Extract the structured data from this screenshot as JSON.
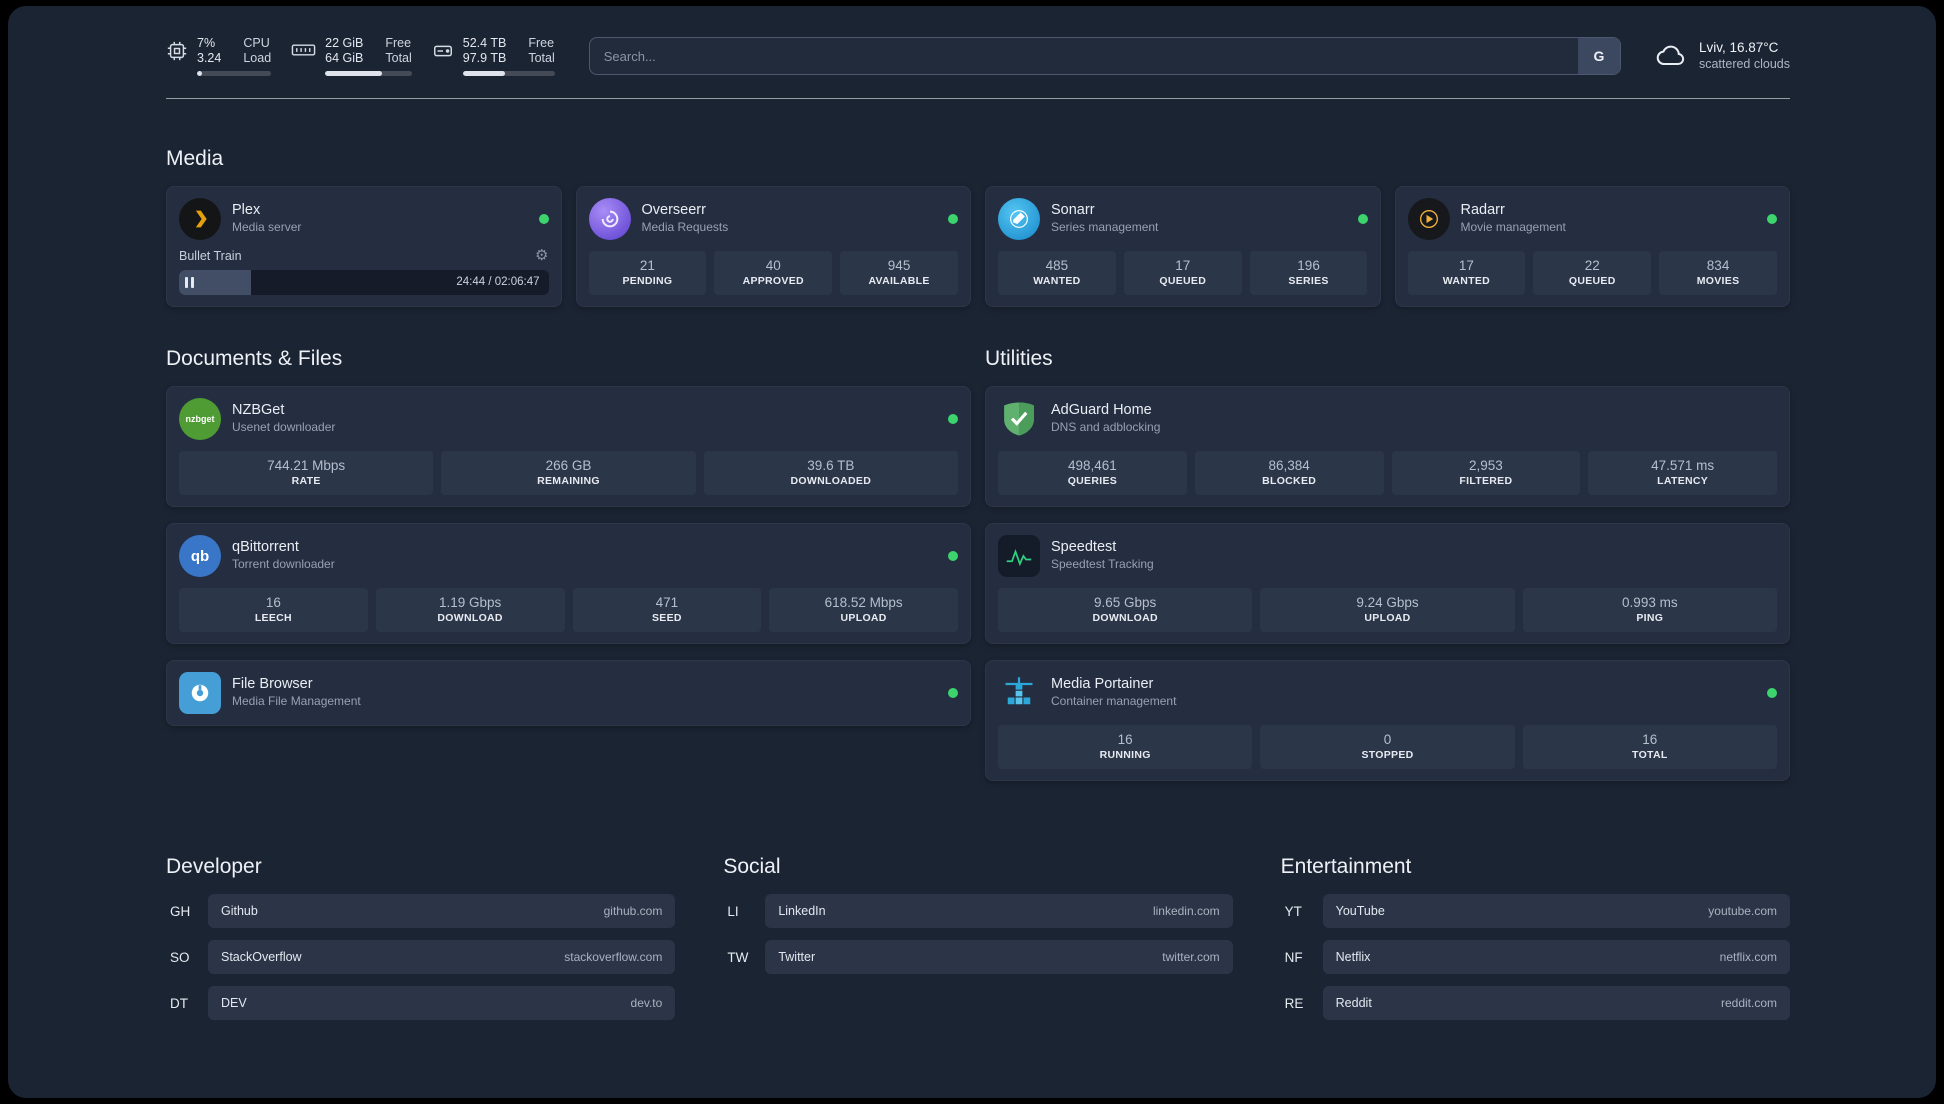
{
  "colors": {
    "background": "#1b2433",
    "card": "#242e40",
    "stat_tile": "#2c3649",
    "status_online": "#3dd36d",
    "plex_accent": "#e5a00d"
  },
  "topbar": {
    "cpu": {
      "value_top": "7%",
      "value_bottom": "3.24",
      "label_top": "CPU",
      "label_bottom": "Load",
      "percent": 7
    },
    "ram": {
      "value_top": "22 GiB",
      "value_bottom": "64 GiB",
      "label_top": "Free",
      "label_bottom": "Total",
      "percent": 66
    },
    "disk": {
      "value_top": "52.4 TB",
      "value_bottom": "97.9 TB",
      "label_top": "Free",
      "label_bottom": "Total",
      "percent": 46
    },
    "search_placeholder": "Search...",
    "search_button": "G",
    "weather": {
      "location": "Lviv, 16.87°C",
      "condition": "scattered clouds"
    }
  },
  "media": {
    "title": "Media",
    "plex": {
      "name": "Plex",
      "desc": "Media server",
      "now_playing": "Bullet Train",
      "time": "24:44 / 02:06:47",
      "progress_percent": 19.5
    },
    "overseerr": {
      "name": "Overseerr",
      "desc": "Media Requests",
      "stats": [
        {
          "value": "21",
          "label": "PENDING"
        },
        {
          "value": "40",
          "label": "APPROVED"
        },
        {
          "value": "945",
          "label": "AVAILABLE"
        }
      ]
    },
    "sonarr": {
      "name": "Sonarr",
      "desc": "Series management",
      "stats": [
        {
          "value": "485",
          "label": "WANTED"
        },
        {
          "value": "17",
          "label": "QUEUED"
        },
        {
          "value": "196",
          "label": "SERIES"
        }
      ]
    },
    "radarr": {
      "name": "Radarr",
      "desc": "Movie management",
      "stats": [
        {
          "value": "17",
          "label": "WANTED"
        },
        {
          "value": "22",
          "label": "QUEUED"
        },
        {
          "value": "834",
          "label": "MOVIES"
        }
      ]
    }
  },
  "documents": {
    "title": "Documents & Files",
    "nzbget": {
      "name": "NZBGet",
      "desc": "Usenet downloader",
      "stats": [
        {
          "value": "744.21 Mbps",
          "label": "RATE"
        },
        {
          "value": "266 GB",
          "label": "REMAINING"
        },
        {
          "value": "39.6 TB",
          "label": "DOWNLOADED"
        }
      ]
    },
    "qbittorrent": {
      "name": "qBittorrent",
      "desc": "Torrent downloader",
      "stats": [
        {
          "value": "16",
          "label": "LEECH"
        },
        {
          "value": "1.19 Gbps",
          "label": "DOWNLOAD"
        },
        {
          "value": "471",
          "label": "SEED"
        },
        {
          "value": "618.52 Mbps",
          "label": "UPLOAD"
        }
      ]
    },
    "filebrowser": {
      "name": "File Browser",
      "desc": "Media File Management"
    }
  },
  "utilities": {
    "title": "Utilities",
    "adguard": {
      "name": "AdGuard Home",
      "desc": "DNS and adblocking",
      "stats": [
        {
          "value": "498,461",
          "label": "QUERIES"
        },
        {
          "value": "86,384",
          "label": "BLOCKED"
        },
        {
          "value": "2,953",
          "label": "FILTERED"
        },
        {
          "value": "47.571 ms",
          "label": "LATENCY"
        }
      ]
    },
    "speedtest": {
      "name": "Speedtest",
      "desc": "Speedtest Tracking",
      "stats": [
        {
          "value": "9.65 Gbps",
          "label": "DOWNLOAD"
        },
        {
          "value": "9.24 Gbps",
          "label": "UPLOAD"
        },
        {
          "value": "0.993 ms",
          "label": "PING"
        }
      ]
    },
    "portainer": {
      "name": "Media Portainer",
      "desc": "Container management",
      "stats": [
        {
          "value": "16",
          "label": "RUNNING"
        },
        {
          "value": "0",
          "label": "STOPPED"
        },
        {
          "value": "16",
          "label": "TOTAL"
        }
      ]
    }
  },
  "bookmarks": [
    {
      "title": "Developer",
      "items": [
        {
          "abbr": "GH",
          "name": "Github",
          "url": "github.com"
        },
        {
          "abbr": "SO",
          "name": "StackOverflow",
          "url": "stackoverflow.com"
        },
        {
          "abbr": "DT",
          "name": "DEV",
          "url": "dev.to"
        }
      ]
    },
    {
      "title": "Social",
      "items": [
        {
          "abbr": "LI",
          "name": "LinkedIn",
          "url": "linkedin.com"
        },
        {
          "abbr": "TW",
          "name": "Twitter",
          "url": "twitter.com"
        }
      ]
    },
    {
      "title": "Entertainment",
      "items": [
        {
          "abbr": "YT",
          "name": "YouTube",
          "url": "youtube.com"
        },
        {
          "abbr": "NF",
          "name": "Netflix",
          "url": "netflix.com"
        },
        {
          "abbr": "RE",
          "name": "Reddit",
          "url": "reddit.com"
        }
      ]
    }
  ]
}
